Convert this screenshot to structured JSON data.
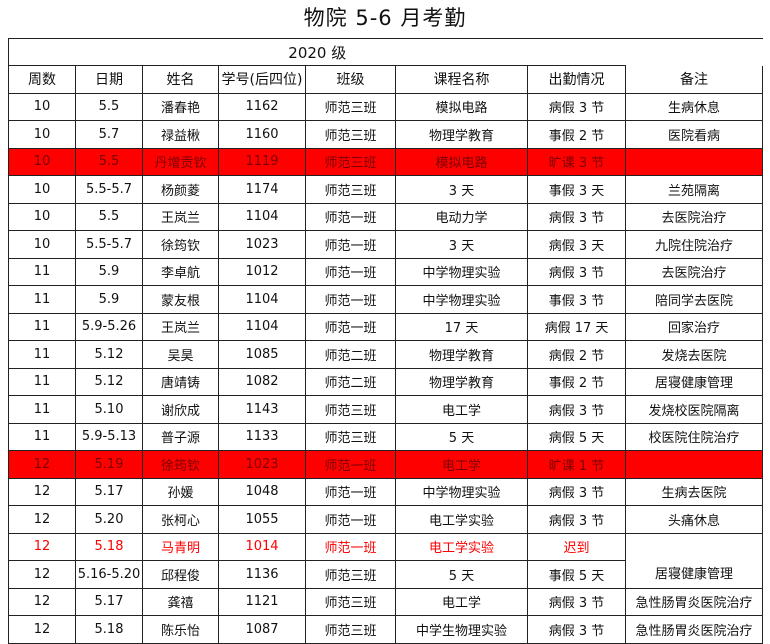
{
  "title": "物院 5-6 月考勤",
  "year_label": "2020 级",
  "columns": [
    "周数",
    "日期",
    "姓名",
    "学号(后四位)",
    "班级",
    "课程名称",
    "出勤情况",
    "备注"
  ],
  "colors": {
    "absent_row_bg": "#ff0000",
    "late_text": "#ff0000"
  },
  "rows": [
    {
      "week": "10",
      "date": "5.5",
      "name": "潘春艳",
      "id": "1162",
      "class": "师范三班",
      "course": "模拟电路",
      "status": "病假 3 节",
      "note": "生病休息"
    },
    {
      "week": "10",
      "date": "5.7",
      "name": "禄益楸",
      "id": "1160",
      "class": "师范三班",
      "course": "物理学教育",
      "status": "事假 2 节",
      "note": "医院看病"
    },
    {
      "week": "10",
      "date": "5.5",
      "name": "丹增贡钦",
      "id": "1119",
      "class": "师范三班",
      "course": "模拟电路",
      "status": "旷课 3 节",
      "note": "",
      "highlight": "absent"
    },
    {
      "week": "10",
      "date": "5.5-5.7",
      "name": "杨颜菱",
      "id": "1174",
      "class": "师范三班",
      "course": "3 天",
      "status": "事假 3 天",
      "note": "兰苑隔离"
    },
    {
      "week": "10",
      "date": "5.5",
      "name": "王岚兰",
      "id": "1104",
      "class": "师范一班",
      "course": "电动力学",
      "status": "病假 3 节",
      "note": "去医院治疗"
    },
    {
      "week": "10",
      "date": "5.5-5.7",
      "name": "徐筠钦",
      "id": "1023",
      "class": "师范一班",
      "course": "3 天",
      "status": "病假 3 天",
      "note": "九院住院治疗"
    },
    {
      "week": "11",
      "date": "5.9",
      "name": "李卓航",
      "id": "1012",
      "class": "师范一班",
      "course": "中学物理实验",
      "status": "病假 3 节",
      "note": "去医院治疗"
    },
    {
      "week": "11",
      "date": "5.9",
      "name": "蒙友根",
      "id": "1104",
      "class": "师范一班",
      "course": "中学物理实验",
      "status": "事假 3 节",
      "note": "陪同学去医院"
    },
    {
      "week": "11",
      "date": "5.9-5.26",
      "name": "王岚兰",
      "id": "1104",
      "class": "师范一班",
      "course": "17 天",
      "status": "病假 17 天",
      "note": "回家治疗"
    },
    {
      "week": "11",
      "date": "5.12",
      "name": "吴昊",
      "id": "1085",
      "class": "师范二班",
      "course": "物理学教育",
      "status": "病假 2 节",
      "note": "发烧去医院"
    },
    {
      "week": "11",
      "date": "5.12",
      "name": "唐靖铸",
      "id": "1082",
      "class": "师范二班",
      "course": "物理学教育",
      "status": "事假 2 节",
      "note": "居寝健康管理"
    },
    {
      "week": "11",
      "date": "5.10",
      "name": "谢欣成",
      "id": "1143",
      "class": "师范三班",
      "course": "电工学",
      "status": "病假 3 节",
      "note": "发烧校医院隔离"
    },
    {
      "week": "11",
      "date": "5.9-5.13",
      "name": "普子源",
      "id": "1133",
      "class": "师范三班",
      "course": "5 天",
      "status": "病假 5 天",
      "note": "校医院住院治疗"
    },
    {
      "week": "12",
      "date": "5.19",
      "name": "徐筠钦",
      "id": "1023",
      "class": "师范一班",
      "course": "电工学",
      "status": "旷课 1 节",
      "note": "",
      "highlight": "absent"
    },
    {
      "week": "12",
      "date": "5.17",
      "name": "孙媛",
      "id": "1048",
      "class": "师范一班",
      "course": "中学物理实验",
      "status": "病假 3 节",
      "note": "生病去医院"
    },
    {
      "week": "12",
      "date": "5.20",
      "name": "张柯心",
      "id": "1055",
      "class": "师范一班",
      "course": "电工学实验",
      "status": "病假 3 节",
      "note": "头痛休息"
    },
    {
      "week": "12",
      "date": "5.18",
      "name": "马青明",
      "id": "1014",
      "class": "师范一班",
      "course": "电工学实验",
      "status": "迟到",
      "note": "居寝健康管理",
      "highlight": "late",
      "note_span": 2
    },
    {
      "week": "12",
      "date": "5.16-5.20",
      "name": "邱程俊",
      "id": "1136",
      "class": "师范三班",
      "course": "5 天",
      "status": "事假 5 天",
      "note_merged": true
    },
    {
      "week": "12",
      "date": "5.17",
      "name": "龚禧",
      "id": "1121",
      "class": "师范三班",
      "course": "电工学",
      "status": "病假 3 节",
      "note": "急性肠胃炎医院治疗"
    },
    {
      "week": "12",
      "date": "5.18",
      "name": "陈乐怡",
      "id": "1087",
      "class": "师范三班",
      "course": "中学生物理实验",
      "status": "病假 3 节",
      "note": "急性肠胃炎医院治疗"
    }
  ]
}
